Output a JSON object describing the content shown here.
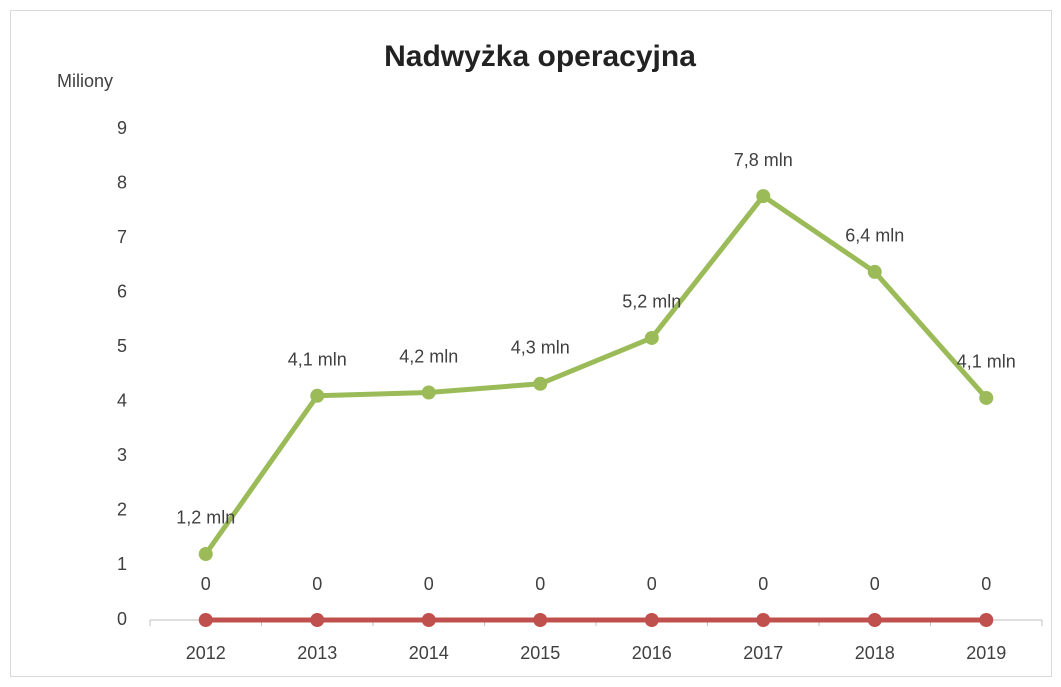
{
  "chart_data": {
    "type": "line",
    "title": "Nadwyżka operacyjna",
    "y_label": "Miliony",
    "categories": [
      "2012",
      "2013",
      "2014",
      "2015",
      "2016",
      "2017",
      "2018",
      "2019"
    ],
    "series": [
      {
        "color": "#9bbb59",
        "values": [
          1.21,
          4.11,
          4.17,
          4.33,
          5.17,
          7.77,
          6.38,
          4.07
        ],
        "value_labels": [
          "1,2 mln",
          "4,1 mln",
          "4,2 mln",
          "4,3 mln",
          "5,2 mln",
          "7,8 mln",
          "6,4 mln",
          "4,1 mln"
        ]
      },
      {
        "color": "#c0504d",
        "values": [
          0,
          0,
          0,
          0,
          0,
          0,
          0,
          0
        ]
      }
    ],
    "ylim": [
      0,
      9
    ],
    "yticks": [
      0,
      1,
      2,
      3,
      4,
      5,
      6,
      7,
      8,
      9
    ],
    "grid": false
  }
}
